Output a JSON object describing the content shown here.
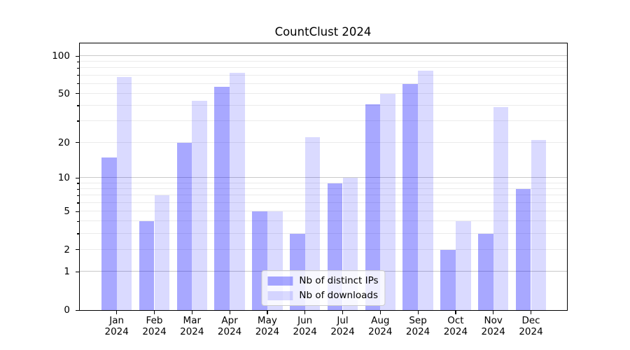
{
  "chart_data": {
    "type": "bar",
    "title": "CountClust 2024",
    "yscale": "log1p",
    "categories": [
      "Jan",
      "Feb",
      "Mar",
      "Apr",
      "May",
      "Jun",
      "Jul",
      "Aug",
      "Sep",
      "Oct",
      "Nov",
      "Dec"
    ],
    "category_year": "2024",
    "series": [
      {
        "name": "Nb of distinct IPs",
        "color": "rgba(0,0,255,0.34)",
        "values": [
          15,
          4,
          20,
          57,
          5,
          3,
          9,
          41,
          60,
          2,
          3,
          8
        ]
      },
      {
        "name": "Nb of downloads",
        "color": "rgba(0,0,255,0.145)",
        "values": [
          68,
          7,
          44,
          73,
          5,
          22,
          10,
          50,
          76,
          4,
          39,
          21
        ]
      }
    ],
    "ylim": [
      0,
      126
    ],
    "yticks": [
      100,
      50,
      20,
      10,
      5,
      2,
      1,
      0
    ],
    "grid_major": [
      1,
      10,
      100
    ],
    "grid_minor": [
      2,
      3,
      4,
      5,
      6,
      7,
      8,
      9,
      20,
      30,
      40,
      50,
      60,
      70,
      80,
      90
    ],
    "grid_on": true,
    "legend_position": "lower center",
    "xlabel": "",
    "ylabel": ""
  },
  "colors": {
    "background": "#ffffff",
    "spine": "#000000",
    "grid_major": "#c9c9c9",
    "grid_minor": "#ebebeb",
    "text": "#000000",
    "legend_border": "#cccccc"
  }
}
